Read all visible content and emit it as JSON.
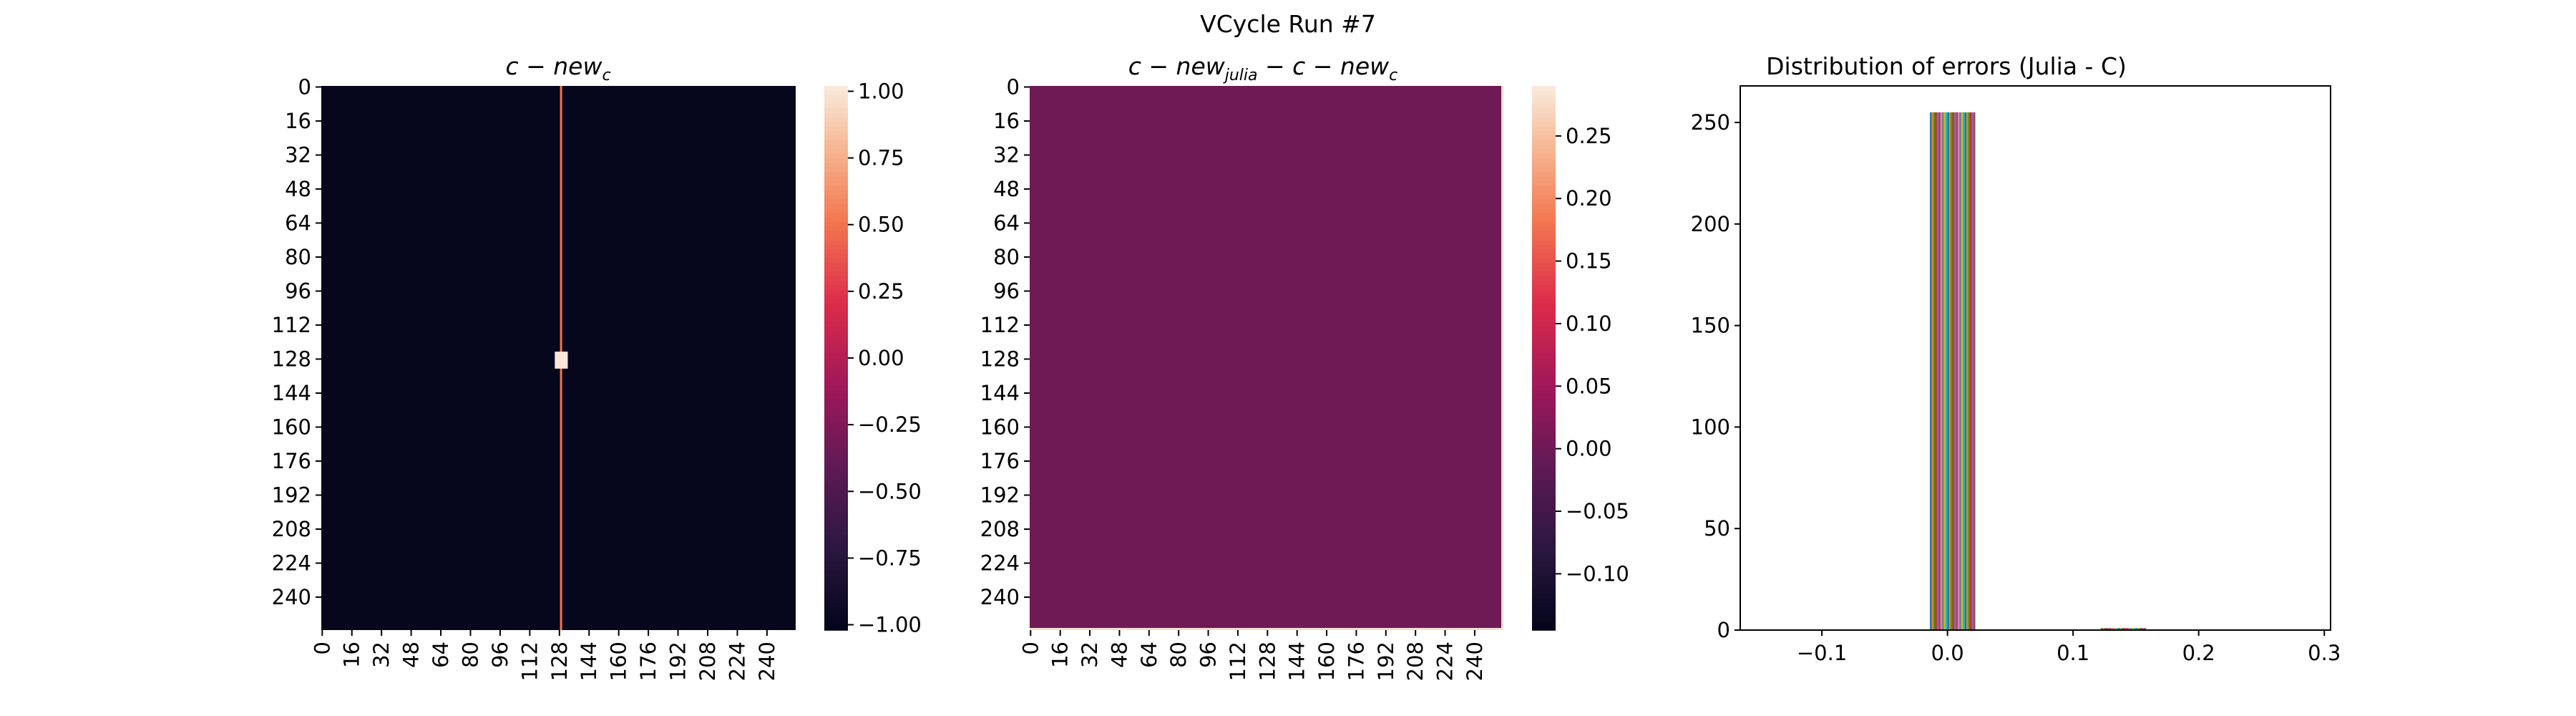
{
  "figure": {
    "suptitle": "VCycle Run #7"
  },
  "chart_data": [
    {
      "type": "heatmap",
      "title": {
        "base": "c − new",
        "sub": "c"
      },
      "rows": 256,
      "cols": 256,
      "background_value": -1.0,
      "vertical_line": {
        "col": 129,
        "value": 0.5
      },
      "square_block": {
        "rows": [
          125,
          132
        ],
        "cols": [
          126,
          132
        ],
        "value": 1.0
      },
      "yticklabels": [
        "0",
        "16",
        "32",
        "48",
        "64",
        "80",
        "96",
        "112",
        "128",
        "144",
        "160",
        "176",
        "192",
        "208",
        "224",
        "240"
      ],
      "xticklabels": [
        "0",
        "16",
        "32",
        "48",
        "64",
        "80",
        "96",
        "112",
        "128",
        "144",
        "160",
        "176",
        "192",
        "208",
        "224",
        "240"
      ],
      "colorbar": {
        "vmin": -1.02,
        "vmax": 1.02,
        "ticks": [
          "−1.00",
          "−0.75",
          "−0.50",
          "−0.25",
          "0.00",
          "0.25",
          "0.50",
          "0.75",
          "1.00"
        ],
        "tick_values": [
          -1.0,
          -0.75,
          -0.5,
          -0.25,
          0.0,
          0.25,
          0.5,
          0.75,
          1.0
        ]
      },
      "colormap": "rocket"
    },
    {
      "type": "heatmap",
      "title": {
        "part1": "c − new",
        "sub1": "julia",
        "part2": " − c − new",
        "sub2": "c"
      },
      "rows": 256,
      "cols": 256,
      "background_value": 0.0,
      "last_column_value": 0.28,
      "last_row_value": 0.28,
      "yticklabels": [
        "0",
        "16",
        "32",
        "48",
        "64",
        "80",
        "96",
        "112",
        "128",
        "144",
        "160",
        "176",
        "192",
        "208",
        "224",
        "240"
      ],
      "xticklabels": [
        "0",
        "16",
        "32",
        "48",
        "64",
        "80",
        "96",
        "112",
        "128",
        "144",
        "160",
        "176",
        "192",
        "208",
        "224",
        "240"
      ],
      "colorbar": {
        "vmin": -0.145,
        "vmax": 0.29,
        "ticks": [
          "−0.10",
          "−0.05",
          "0.00",
          "0.05",
          "0.10",
          "0.15",
          "0.20",
          "0.25"
        ],
        "tick_values": [
          -0.1,
          -0.05,
          0.0,
          0.05,
          0.1,
          0.15,
          0.2,
          0.25
        ]
      },
      "colormap": "rocket"
    },
    {
      "type": "bar",
      "title": "Distribution of errors (Julia - C)",
      "xlim": [
        -0.165,
        0.305
      ],
      "ylim": [
        0,
        268
      ],
      "xticks": [
        -0.1,
        0.0,
        0.1,
        0.2,
        0.3
      ],
      "xticklabels": [
        "−0.1",
        "0.0",
        "0.1",
        "0.2",
        "0.3"
      ],
      "yticks": [
        0,
        50,
        100,
        150,
        200,
        250
      ],
      "yticklabels": [
        "0",
        "50",
        "100",
        "150",
        "200",
        "250"
      ],
      "bins": [
        {
          "x0": -0.014,
          "x1": 0.022,
          "count": 255
        },
        {
          "x0": 0.122,
          "x1": 0.158,
          "count": 1
        }
      ],
      "bar_colors": [
        "#1f77b4",
        "#ff7f0e",
        "#2ca02c",
        "#d62728",
        "#9467bd",
        "#8c564b",
        "#e377c2",
        "#7f7f7f",
        "#bcbd22",
        "#17becf"
      ]
    }
  ]
}
